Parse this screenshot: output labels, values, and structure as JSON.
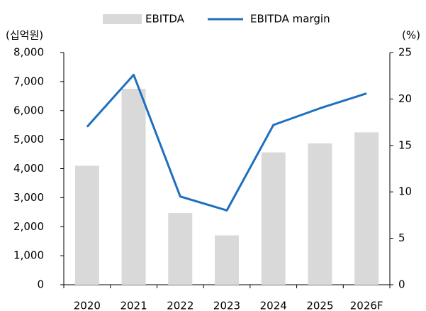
{
  "chart_data": {
    "type": "bar_line",
    "y_label": "(십억원)",
    "y2_label": "(%)",
    "categories": [
      "2020",
      "2021",
      "2022",
      "2023",
      "2024",
      "2025",
      "2026F"
    ],
    "series": [
      {
        "name": "EBITDA",
        "type": "bar",
        "color": "#d9d9d9",
        "values": [
          4100,
          6750,
          2470,
          1700,
          4560,
          4870,
          5250
        ]
      },
      {
        "name": "EBITDA margin",
        "type": "line",
        "axis": "y2",
        "color": "#1f6fbf",
        "values": [
          17.0,
          22.6,
          9.5,
          8.0,
          17.2,
          19.0,
          20.6
        ]
      }
    ],
    "ylim": [
      0,
      8000
    ],
    "yticks": [
      0,
      {
        "value": 1000,
        "label": "1,000"
      },
      {
        "value": 2000,
        "label": "2,000"
      },
      {
        "value": 3000,
        "label": "3,000"
      },
      {
        "value": 4000,
        "label": "4,000"
      },
      {
        "value": 5000,
        "label": "5,000"
      },
      {
        "value": 6000,
        "label": "6,000"
      },
      {
        "value": 7000,
        "label": "7,000"
      },
      {
        "value": 8000,
        "label": "8,000"
      }
    ],
    "y2lim": [
      0,
      25
    ],
    "y2ticks": [
      0,
      5,
      10,
      15,
      20,
      25
    ],
    "legend": "top"
  }
}
